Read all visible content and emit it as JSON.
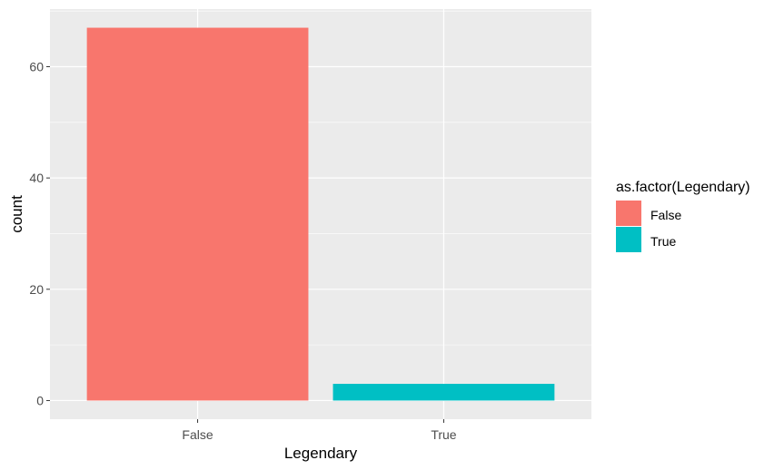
{
  "chart_data": {
    "type": "bar",
    "categories": [
      "False",
      "True"
    ],
    "values": [
      67,
      3
    ],
    "colors": [
      "#F8766D",
      "#00BFC4"
    ],
    "xlabel": "Legendary",
    "ylabel": "count",
    "ylim": [
      -3.35,
      70.35
    ],
    "yticks": [
      0,
      20,
      40,
      60
    ],
    "grid": true,
    "legend": {
      "title": "as.factor(Legendary)",
      "placement": "right",
      "items": [
        {
          "label": "False",
          "color": "#F8766D"
        },
        {
          "label": "True",
          "color": "#00BFC4"
        }
      ]
    }
  }
}
